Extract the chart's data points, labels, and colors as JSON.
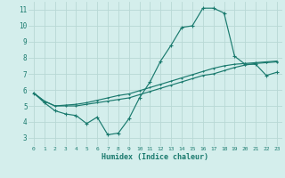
{
  "xlabel": "Humidex (Indice chaleur)",
  "bg_color": "#d4eeec",
  "grid_color": "#b8d8d5",
  "line_color": "#1a7a6e",
  "xlim": [
    -0.5,
    23.5
  ],
  "ylim": [
    2.5,
    11.5
  ],
  "xticks": [
    0,
    1,
    2,
    3,
    4,
    5,
    6,
    7,
    8,
    9,
    10,
    11,
    12,
    13,
    14,
    15,
    16,
    17,
    18,
    19,
    20,
    21,
    22,
    23
  ],
  "yticks": [
    3,
    4,
    5,
    6,
    7,
    8,
    9,
    10,
    11
  ],
  "series": [
    {
      "x": [
        0,
        1,
        2,
        3,
        4,
        5,
        6,
        7,
        8,
        9,
        10,
        11,
        12,
        13,
        14,
        15,
        16,
        17,
        18,
        19,
        20,
        21,
        22,
        23
      ],
      "y": [
        5.8,
        5.2,
        4.7,
        4.5,
        4.4,
        3.9,
        4.3,
        3.2,
        3.3,
        4.2,
        5.5,
        6.5,
        7.8,
        8.8,
        9.9,
        10.0,
        11.1,
        11.1,
        10.8,
        8.1,
        7.6,
        7.6,
        6.9,
        7.1
      ]
    },
    {
      "x": [
        0,
        1,
        2,
        3,
        4,
        5,
        6,
        7,
        8,
        9,
        10,
        11,
        12,
        13,
        14,
        15,
        16,
        17,
        18,
        19,
        20,
        21,
        22,
        23
      ],
      "y": [
        5.8,
        5.3,
        5.0,
        5.0,
        5.0,
        5.1,
        5.2,
        5.3,
        5.4,
        5.5,
        5.7,
        5.9,
        6.1,
        6.3,
        6.5,
        6.7,
        6.9,
        7.0,
        7.2,
        7.4,
        7.55,
        7.65,
        7.7,
        7.75
      ]
    },
    {
      "x": [
        0,
        1,
        2,
        3,
        4,
        5,
        6,
        7,
        8,
        9,
        10,
        11,
        12,
        13,
        14,
        15,
        16,
        17,
        18,
        19,
        20,
        21,
        22,
        23
      ],
      "y": [
        5.8,
        5.3,
        5.0,
        5.05,
        5.1,
        5.2,
        5.35,
        5.5,
        5.65,
        5.75,
        5.95,
        6.15,
        6.35,
        6.55,
        6.75,
        6.95,
        7.15,
        7.35,
        7.5,
        7.6,
        7.65,
        7.7,
        7.75,
        7.8
      ]
    }
  ]
}
